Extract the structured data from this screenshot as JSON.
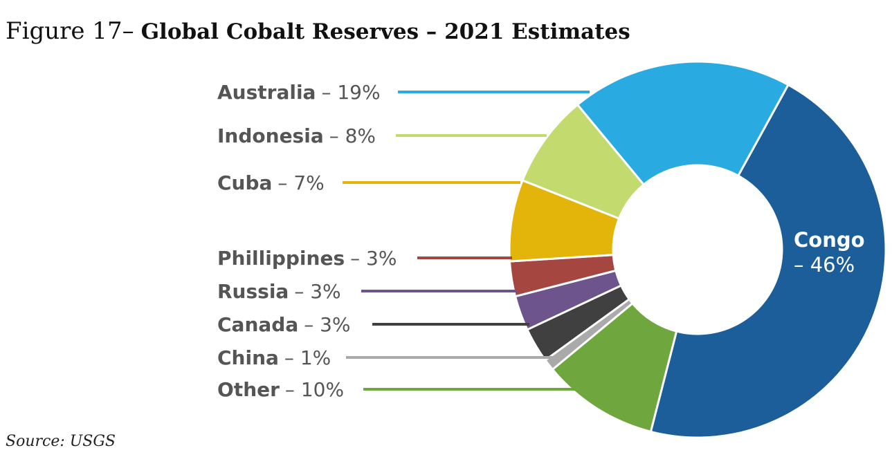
{
  "chart_data": {
    "type": "pie",
    "donut": true,
    "title_prefix": "Figure 17–",
    "title": "Global Cobalt Reserves – 2021 Estimates",
    "source": "Source: USGS",
    "slices": [
      {
        "name": "Congo",
        "value": 46,
        "label": "– 46%",
        "color": "#1b5e99"
      },
      {
        "name": "Other",
        "value": 10,
        "label": "– 10%",
        "color": "#6fa73e"
      },
      {
        "name": "China",
        "value": 1,
        "label": "– 1%",
        "color": "#aaaaaa"
      },
      {
        "name": "Canada",
        "value": 3,
        "label": "– 3%",
        "color": "#404040"
      },
      {
        "name": "Russia",
        "value": 3,
        "label": "– 3%",
        "color": "#6e548c"
      },
      {
        "name": "Phillippines",
        "value": 3,
        "label": "– 3%",
        "color": "#a64641"
      },
      {
        "name": "Cuba",
        "value": 7,
        "label": "– 7%",
        "color": "#e3b40a"
      },
      {
        "name": "Indonesia",
        "value": 8,
        "label": "– 8%",
        "color": "#c2da6e"
      },
      {
        "name": "Australia",
        "value": 19,
        "label": "– 19%",
        "color": "#29abe2"
      }
    ]
  }
}
